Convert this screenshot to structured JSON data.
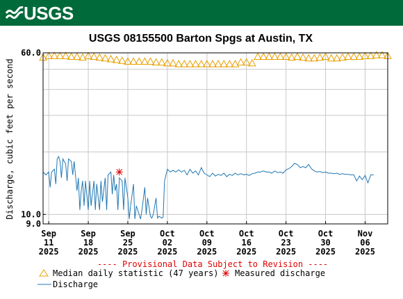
{
  "brand": {
    "logo_text": "USGS",
    "header_color": "#006a3a"
  },
  "chart_data": {
    "type": "line",
    "title": "USGS 08155500 Barton Spgs at Austin, TX",
    "ylabel": "Discharge, cubic feet per second",
    "xlabel": "",
    "y_scale": "log",
    "ylim": [
      9.0,
      60.0
    ],
    "y_ticks": [
      {
        "value": 60.0,
        "label": "60.0"
      },
      {
        "value": 10.0,
        "label": "10.0"
      },
      {
        "value": 9.0,
        "label": "9.0"
      }
    ],
    "y_gridlines": [
      10,
      20,
      30,
      40,
      50,
      60
    ],
    "xlim": [
      "2025-09-10",
      "2025-11-10"
    ],
    "x_ticks": [
      {
        "date": "2025-09-11",
        "month": "Sep",
        "day": "11",
        "year": "2025"
      },
      {
        "date": "2025-09-18",
        "month": "Sep",
        "day": "18",
        "year": "2025"
      },
      {
        "date": "2025-09-25",
        "month": "Sep",
        "day": "25",
        "year": "2025"
      },
      {
        "date": "2025-10-02",
        "month": "Oct",
        "day": "02",
        "year": "2025"
      },
      {
        "date": "2025-10-09",
        "month": "Oct",
        "day": "09",
        "year": "2025"
      },
      {
        "date": "2025-10-16",
        "month": "Oct",
        "day": "16",
        "year": "2025"
      },
      {
        "date": "2025-10-23",
        "month": "Oct",
        "day": "23",
        "year": "2025"
      },
      {
        "date": "2025-10-30",
        "month": "Oct",
        "day": "30",
        "year": "2025"
      },
      {
        "date": "2025-11-06",
        "month": "Nov",
        "day": "06",
        "year": "2025"
      }
    ],
    "grid": true,
    "provisional_note": "---- Provisional Data Subject to Revision ----",
    "legend": {
      "placement": "bottom",
      "items": [
        {
          "label": "Median daily statistic (47 years)",
          "marker": "triangle",
          "color": "#e8a000"
        },
        {
          "label": "Measured discharge",
          "marker": "asterisk",
          "color": "#e00000"
        },
        {
          "label": "Discharge",
          "marker": "line",
          "color": "#1f77b4"
        }
      ]
    },
    "series": [
      {
        "name": "Median daily statistic (47 years)",
        "color": "#e8a000",
        "points": [
          [
            "2025-09-10",
            57
          ],
          [
            "2025-09-11",
            58
          ],
          [
            "2025-09-12",
            58
          ],
          [
            "2025-09-13",
            58
          ],
          [
            "2025-09-14",
            58
          ],
          [
            "2025-09-15",
            57.5
          ],
          [
            "2025-09-16",
            57.5
          ],
          [
            "2025-09-17",
            57
          ],
          [
            "2025-09-18",
            58
          ],
          [
            "2025-09-19",
            57.5
          ],
          [
            "2025-09-20",
            57
          ],
          [
            "2025-09-21",
            56.5
          ],
          [
            "2025-09-22",
            56
          ],
          [
            "2025-09-23",
            55.5
          ],
          [
            "2025-09-24",
            55
          ],
          [
            "2025-09-25",
            54.5
          ],
          [
            "2025-09-26",
            54.5
          ],
          [
            "2025-09-27",
            54.5
          ],
          [
            "2025-09-28",
            54.5
          ],
          [
            "2025-09-29",
            54.5
          ],
          [
            "2025-09-30",
            54
          ],
          [
            "2025-10-01",
            54
          ],
          [
            "2025-10-02",
            53.5
          ],
          [
            "2025-10-03",
            53.5
          ],
          [
            "2025-10-04",
            53
          ],
          [
            "2025-10-05",
            53
          ],
          [
            "2025-10-06",
            53
          ],
          [
            "2025-10-07",
            53
          ],
          [
            "2025-10-08",
            53
          ],
          [
            "2025-10-09",
            53
          ],
          [
            "2025-10-10",
            53
          ],
          [
            "2025-10-11",
            53
          ],
          [
            "2025-10-12",
            53
          ],
          [
            "2025-10-13",
            53
          ],
          [
            "2025-10-14",
            53
          ],
          [
            "2025-10-15",
            54
          ],
          [
            "2025-10-16",
            54
          ],
          [
            "2025-10-17",
            53.5
          ],
          [
            "2025-10-18",
            57.5
          ],
          [
            "2025-10-19",
            57.5
          ],
          [
            "2025-10-20",
            57.5
          ],
          [
            "2025-10-21",
            57.5
          ],
          [
            "2025-10-22",
            57.5
          ],
          [
            "2025-10-23",
            57.5
          ],
          [
            "2025-10-24",
            57
          ],
          [
            "2025-10-25",
            57.5
          ],
          [
            "2025-10-26",
            57
          ],
          [
            "2025-10-27",
            56.5
          ],
          [
            "2025-10-28",
            56.5
          ],
          [
            "2025-10-29",
            57
          ],
          [
            "2025-10-30",
            57.5
          ],
          [
            "2025-10-31",
            56.5
          ],
          [
            "2025-11-01",
            56.5
          ],
          [
            "2025-11-02",
            57
          ],
          [
            "2025-11-03",
            57.5
          ],
          [
            "2025-11-04",
            57.5
          ],
          [
            "2025-11-05",
            57.5
          ],
          [
            "2025-11-06",
            58
          ],
          [
            "2025-11-07",
            58
          ],
          [
            "2025-11-08",
            58.5
          ],
          [
            "2025-11-09",
            58.5
          ],
          [
            "2025-11-10",
            58
          ]
        ]
      },
      {
        "name": "Discharge",
        "color": "#1f77b4",
        "points": [
          [
            "2025-09-10T00",
            16
          ],
          [
            "2025-09-10T12",
            15.5
          ],
          [
            "2025-09-11T00",
            16
          ],
          [
            "2025-09-11T06",
            13.5
          ],
          [
            "2025-09-11T12",
            16
          ],
          [
            "2025-09-12T00",
            16.5
          ],
          [
            "2025-09-12T06",
            14
          ],
          [
            "2025-09-12T12",
            18.5
          ],
          [
            "2025-09-12T18",
            19
          ],
          [
            "2025-09-13T00",
            18
          ],
          [
            "2025-09-13T06",
            15
          ],
          [
            "2025-09-13T12",
            18.5
          ],
          [
            "2025-09-14T00",
            17.5
          ],
          [
            "2025-09-14T06",
            14.5
          ],
          [
            "2025-09-14T12",
            18.5
          ],
          [
            "2025-09-15T00",
            18
          ],
          [
            "2025-09-15T06",
            15.5
          ],
          [
            "2025-09-15T12",
            18
          ],
          [
            "2025-09-16T00",
            13
          ],
          [
            "2025-09-16T06",
            15
          ],
          [
            "2025-09-16T12",
            10.5
          ],
          [
            "2025-09-16T18",
            13
          ],
          [
            "2025-09-17T00",
            14.5
          ],
          [
            "2025-09-17T06",
            11
          ],
          [
            "2025-09-17T12",
            14.5
          ],
          [
            "2025-09-18T00",
            10.5
          ],
          [
            "2025-09-18T06",
            14.5
          ],
          [
            "2025-09-18T12",
            11
          ],
          [
            "2025-09-19T00",
            14.5
          ],
          [
            "2025-09-19T06",
            10.5
          ],
          [
            "2025-09-19T12",
            14
          ],
          [
            "2025-09-20T00",
            10.5
          ],
          [
            "2025-09-20T06",
            14.5
          ],
          [
            "2025-09-20T12",
            11.5
          ],
          [
            "2025-09-21T00",
            15
          ],
          [
            "2025-09-21T06",
            10.5
          ],
          [
            "2025-09-21T12",
            15.5
          ],
          [
            "2025-09-22T00",
            16
          ],
          [
            "2025-09-22T06",
            12.5
          ],
          [
            "2025-09-22T12",
            15.5
          ],
          [
            "2025-09-22T18",
            13
          ],
          [
            "2025-09-23T00",
            14
          ],
          [
            "2025-09-23T06",
            10.5
          ],
          [
            "2025-09-23T12",
            15
          ],
          [
            "2025-09-24T00",
            14.5
          ],
          [
            "2025-09-24T06",
            10.5
          ],
          [
            "2025-09-24T12",
            15
          ],
          [
            "2025-09-25T00",
            12
          ],
          [
            "2025-09-25T06",
            9.5
          ],
          [
            "2025-09-25T12",
            11
          ],
          [
            "2025-09-26T00",
            14
          ],
          [
            "2025-09-26T06",
            9.5
          ],
          [
            "2025-09-26T12",
            11
          ],
          [
            "2025-09-27T00",
            10
          ],
          [
            "2025-09-27T06",
            9.5
          ],
          [
            "2025-09-27T12",
            10.5
          ],
          [
            "2025-09-28T00",
            13.5
          ],
          [
            "2025-09-28T06",
            10
          ],
          [
            "2025-09-28T12",
            12
          ],
          [
            "2025-09-29T00",
            9.8
          ],
          [
            "2025-09-29T06",
            9.6
          ],
          [
            "2025-09-29T12",
            10
          ],
          [
            "2025-09-30T00",
            12
          ],
          [
            "2025-09-30T06",
            9.6
          ],
          [
            "2025-09-30T12",
            9.8
          ],
          [
            "2025-10-01T00",
            9.6
          ],
          [
            "2025-10-01T06",
            9.7
          ],
          [
            "2025-10-01T12",
            14.5
          ],
          [
            "2025-10-02T00",
            16.5
          ],
          [
            "2025-10-02T12",
            16
          ],
          [
            "2025-10-03T00",
            16.3
          ],
          [
            "2025-10-03T12",
            16
          ],
          [
            "2025-10-04T00",
            16.4
          ],
          [
            "2025-10-04T12",
            16
          ],
          [
            "2025-10-05T00",
            16.3
          ],
          [
            "2025-10-05T12",
            15.5
          ],
          [
            "2025-10-06T00",
            16.5
          ],
          [
            "2025-10-06T12",
            15.8
          ],
          [
            "2025-10-07T00",
            16.2
          ],
          [
            "2025-10-07T12",
            15.5
          ],
          [
            "2025-10-08T00",
            16.8
          ],
          [
            "2025-10-08T12",
            15.8
          ],
          [
            "2025-10-09T00",
            15.5
          ],
          [
            "2025-10-09T12",
            15.2
          ],
          [
            "2025-10-10T00",
            15.8
          ],
          [
            "2025-10-10T12",
            15.3
          ],
          [
            "2025-10-11T00",
            15.6
          ],
          [
            "2025-10-11T12",
            15.4
          ],
          [
            "2025-10-12T00",
            15.8
          ],
          [
            "2025-10-12T12",
            15.2
          ],
          [
            "2025-10-13T00",
            15.6
          ],
          [
            "2025-10-13T12",
            15.4
          ],
          [
            "2025-10-14T00",
            15.8
          ],
          [
            "2025-10-14T12",
            15.5
          ],
          [
            "2025-10-15T00",
            15.7
          ],
          [
            "2025-10-15T12",
            15.5
          ],
          [
            "2025-10-16T00",
            15.6
          ],
          [
            "2025-10-16T12",
            15.4
          ],
          [
            "2025-10-17T00",
            15.7
          ],
          [
            "2025-10-17T12",
            15.8
          ],
          [
            "2025-10-18T00",
            16
          ],
          [
            "2025-10-18T12",
            16
          ],
          [
            "2025-10-19T00",
            16.2
          ],
          [
            "2025-10-19T12",
            16
          ],
          [
            "2025-10-20T00",
            16
          ],
          [
            "2025-10-20T12",
            15.8
          ],
          [
            "2025-10-21T00",
            16.2
          ],
          [
            "2025-10-21T12",
            15.9
          ],
          [
            "2025-10-22T00",
            16
          ],
          [
            "2025-10-22T12",
            15.8
          ],
          [
            "2025-10-23T00",
            16.4
          ],
          [
            "2025-10-23T12",
            16.6
          ],
          [
            "2025-10-24T00",
            17
          ],
          [
            "2025-10-24T12",
            17.6
          ],
          [
            "2025-10-25T00",
            17.4
          ],
          [
            "2025-10-25T12",
            16.8
          ],
          [
            "2025-10-26T00",
            17
          ],
          [
            "2025-10-26T12",
            16.8
          ],
          [
            "2025-10-27T00",
            17.4
          ],
          [
            "2025-10-27T12",
            16.6
          ],
          [
            "2025-10-28T00",
            16.2
          ],
          [
            "2025-10-28T12",
            16
          ],
          [
            "2025-10-29T00",
            16.1
          ],
          [
            "2025-10-29T12",
            15.9
          ],
          [
            "2025-10-30T00",
            16
          ],
          [
            "2025-10-30T12",
            15.8
          ],
          [
            "2025-10-31T00",
            15.8
          ],
          [
            "2025-10-31T12",
            15.7
          ],
          [
            "2025-11-01T00",
            15.8
          ],
          [
            "2025-11-01T12",
            15.6
          ],
          [
            "2025-11-02T00",
            15.7
          ],
          [
            "2025-11-02T12",
            15.6
          ],
          [
            "2025-11-03T00",
            15.6
          ],
          [
            "2025-11-03T12",
            15.5
          ],
          [
            "2025-11-04T00",
            15.5
          ],
          [
            "2025-11-04T12",
            14.5
          ],
          [
            "2025-11-05T00",
            15.3
          ],
          [
            "2025-11-05T12",
            14.7
          ],
          [
            "2025-11-06T00",
            15.4
          ],
          [
            "2025-11-06T12",
            14.2
          ],
          [
            "2025-11-07T00",
            15.5
          ],
          [
            "2025-11-07T12",
            15.5
          ]
        ]
      },
      {
        "name": "Measured discharge",
        "color": "#e00000",
        "points": [
          [
            "2025-09-23T12",
            16
          ]
        ]
      }
    ]
  }
}
